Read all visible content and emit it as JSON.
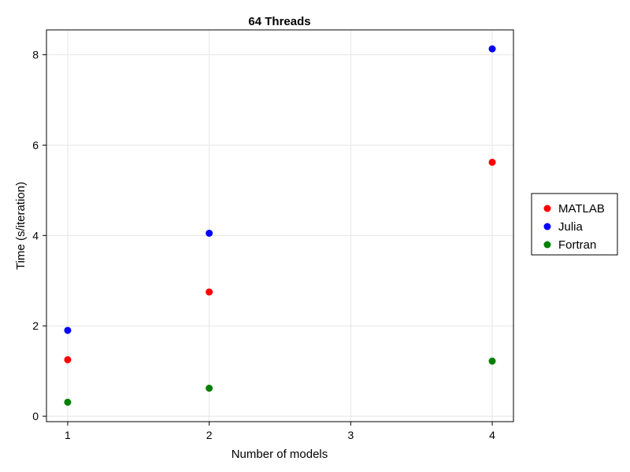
{
  "chart_data": {
    "type": "scatter",
    "title": "64 Threads",
    "xlabel": "Number of models",
    "ylabel": "Time (s/iteration)",
    "x": [
      1,
      2,
      4
    ],
    "xlim": [
      0.85,
      4.15
    ],
    "ylim": [
      -0.12,
      8.55
    ],
    "xticks": [
      1,
      2,
      3,
      4
    ],
    "yticks": [
      0,
      2,
      4,
      6,
      8
    ],
    "grid": true,
    "legend_position": "right",
    "series": [
      {
        "name": "MATLAB",
        "color": "#ff0000",
        "values": [
          1.25,
          2.75,
          5.62
        ]
      },
      {
        "name": "Julia",
        "color": "#0000ff",
        "values": [
          1.9,
          4.05,
          8.13
        ]
      },
      {
        "name": "Fortran",
        "color": "#008000",
        "values": [
          0.31,
          0.62,
          1.22
        ]
      }
    ]
  }
}
